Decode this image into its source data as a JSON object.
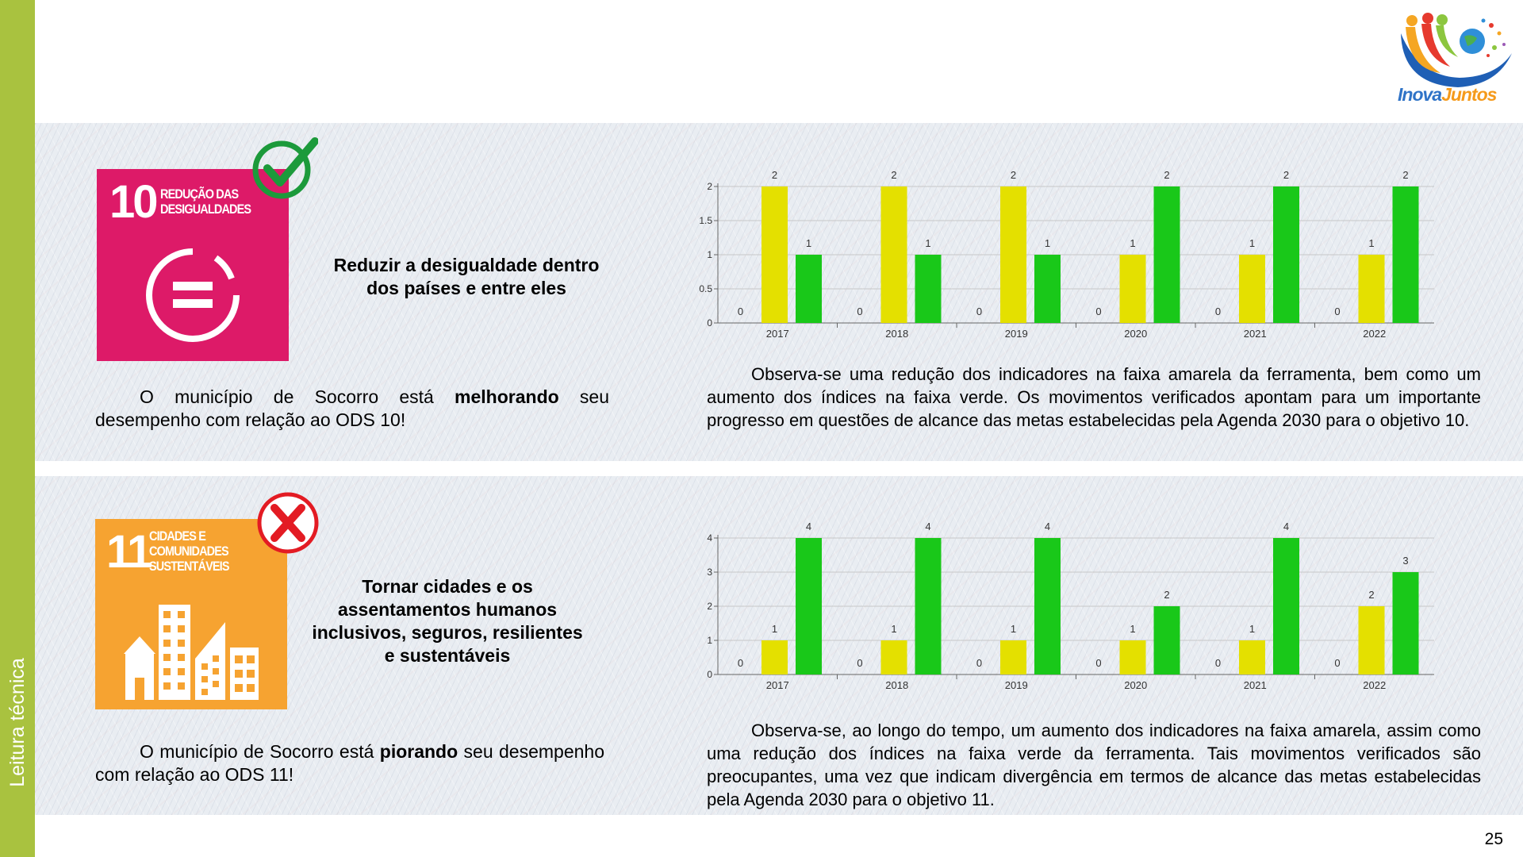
{
  "sidebar": {
    "label": "Leitura técnica"
  },
  "logo": {
    "brand_part1": "Inova",
    "brand_part2": "Juntos"
  },
  "page_number": "25",
  "colors": {
    "yellow": "#e4e000",
    "green": "#19c819",
    "sdg10": "#dd1a68",
    "sdg11": "#f6a331",
    "sidebar": "#a9c23f"
  },
  "goals": [
    {
      "icon": {
        "number": "10",
        "name_line1": "REDUÇÃO DAS",
        "name_line2": "DESIGUALDADES",
        "name_line3": ""
      },
      "badge": "check-icon",
      "title_line1": "Reduzir a desigualdade dentro",
      "title_line2": "dos países e entre eles",
      "title_line3": "",
      "title_line4": "",
      "status_before": "O município de Socorro está ",
      "status_bold": "melhorando",
      "status_after": " seu desempenho com relação ao ODS 10!",
      "analysis": "Observa-se uma redução dos indicadores na faixa amarela da ferramenta, bem como um aumento dos índices na faixa verde. Os movimentos verificados apontam para um importante progresso em questões de alcance das metas estabelecidas pela Agenda 2030 para o objetivo 10."
    },
    {
      "icon": {
        "number": "11",
        "name_line1": "CIDADES E",
        "name_line2": "COMUNIDADES",
        "name_line3": "SUSTENTÁVEIS"
      },
      "badge": "x-icon",
      "title_line1": "Tornar cidades e os",
      "title_line2": "assentamentos humanos",
      "title_line3": "inclusivos, seguros, resilientes",
      "title_line4": "e sustentáveis",
      "status_before": "O município de Socorro está ",
      "status_bold": "piorando",
      "status_after": " seu desempenho com relação ao ODS 11!",
      "analysis": "Observa-se, ao longo do tempo, um aumento dos indicadores na faixa amarela, assim como uma redução dos índices na faixa verde da ferramenta. Tais movimentos verificados são preocupantes, uma vez que indicam divergência em termos de alcance das metas estabelecidas pela Agenda 2030 para o objetivo 11."
    }
  ],
  "chart_data": [
    {
      "type": "bar",
      "categories": [
        "2017",
        "2018",
        "2019",
        "2020",
        "2021",
        "2022"
      ],
      "series": [
        {
          "values": [
            0,
            0,
            0,
            0,
            0,
            0
          ],
          "color": "#ffffff"
        },
        {
          "values": [
            2,
            2,
            2,
            1,
            1,
            1
          ],
          "color": "#e4e000"
        },
        {
          "values": [
            1,
            1,
            1,
            2,
            2,
            2
          ],
          "color": "#19c819"
        }
      ],
      "yticks": [
        "0",
        "0.5",
        "1",
        "1.5",
        "2"
      ],
      "ylim": [
        0,
        2
      ],
      "grid": true
    },
    {
      "type": "bar",
      "categories": [
        "2017",
        "2018",
        "2019",
        "2020",
        "2021",
        "2022"
      ],
      "series": [
        {
          "values": [
            0,
            0,
            0,
            0,
            0,
            0
          ],
          "color": "#ffffff"
        },
        {
          "values": [
            1,
            1,
            1,
            1,
            1,
            2
          ],
          "color": "#e4e000"
        },
        {
          "values": [
            4,
            4,
            4,
            2,
            4,
            3
          ],
          "color": "#19c819"
        }
      ],
      "yticks": [
        "0",
        "1",
        "2",
        "3",
        "4"
      ],
      "ylim": [
        0,
        4
      ],
      "grid": true
    }
  ]
}
